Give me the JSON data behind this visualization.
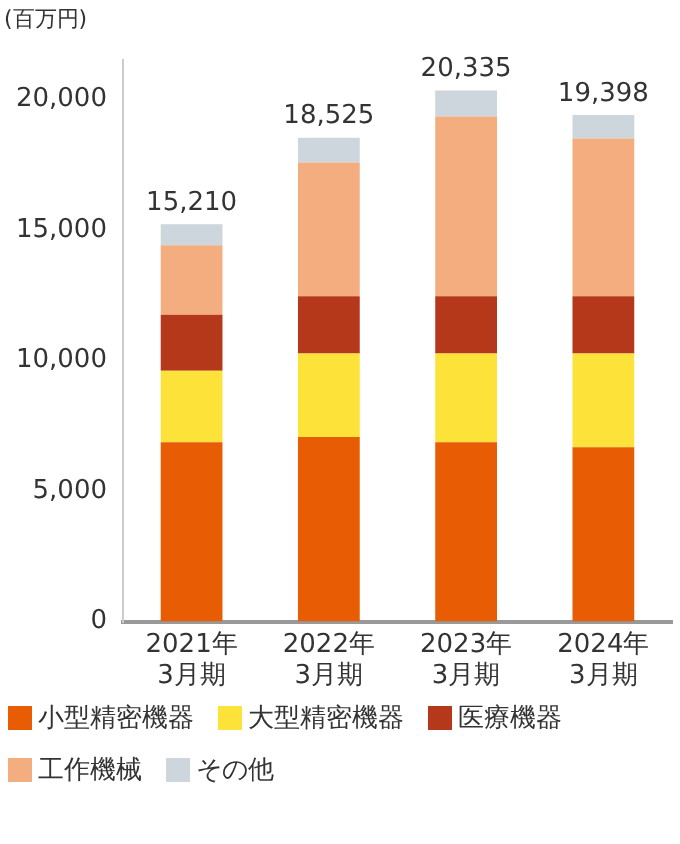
{
  "chart_data": {
    "type": "bar",
    "stacked": true,
    "ylabel": "(百万円)",
    "categories": [
      "2021年\n3月期",
      "2022年\n3月期",
      "2023年\n3月期",
      "2024年\n3月期"
    ],
    "series": [
      {
        "name": "小型精密機器",
        "color": "#e85d04",
        "values": [
          6870,
          7070,
          6870,
          6670
        ]
      },
      {
        "name": "大型精密機器",
        "color": "#fde23a",
        "values": [
          2730,
          3190,
          3390,
          3590
        ]
      },
      {
        "name": "医療機器",
        "color": "#b5381a",
        "values": [
          2150,
          2200,
          2200,
          2200
        ]
      },
      {
        "name": "工作機械",
        "color": "#f4ad7e",
        "values": [
          2660,
          5115,
          6875,
          6038
        ]
      },
      {
        "name": "その他",
        "color": "#cdd6dc",
        "values": [
          800,
          950,
          1000,
          900
        ]
      }
    ],
    "totals": [
      "15,210",
      "18,525",
      "20,335",
      "19,398"
    ],
    "ylim": [
      0,
      21500
    ],
    "yticks": [
      0,
      {
        "value": 5000,
        "label": "5,000"
      },
      {
        "value": 10000,
        "label": "10,000"
      },
      {
        "value": 15000,
        "label": "15,000"
      },
      {
        "value": 20000,
        "label": "20,000"
      }
    ],
    "grid": false,
    "legend": "bottom"
  }
}
